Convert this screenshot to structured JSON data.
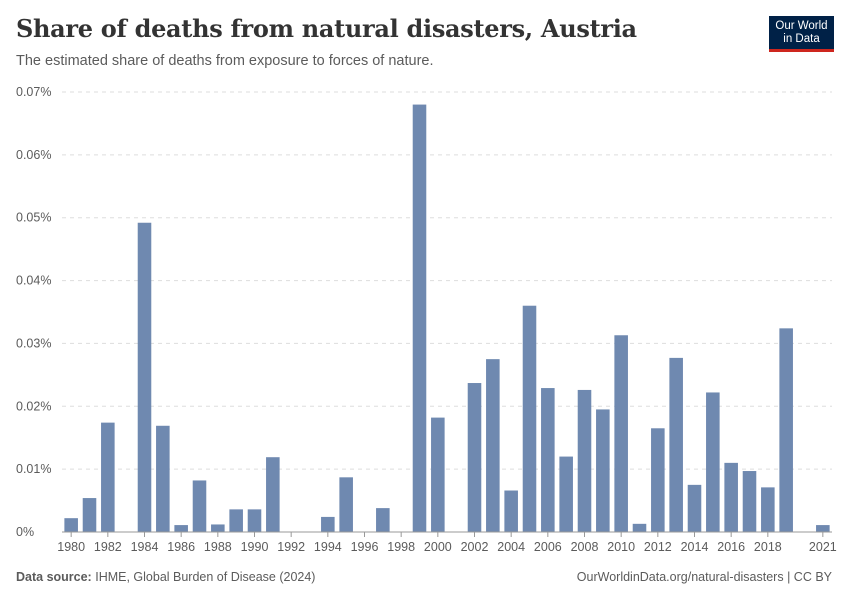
{
  "header": {
    "title": "Share of deaths from natural disasters, Austria",
    "subtitle": "The estimated share of deaths from exposure to forces of nature."
  },
  "logo": {
    "line1": "Our World",
    "line2": "in Data"
  },
  "footer": {
    "source_label": "Data source:",
    "source_text": "IHME, Global Burden of Disease (2024)",
    "url": "OurWorldinData.org/natural-disasters | CC BY"
  },
  "colors": {
    "bar": "#6f89b0",
    "grid": "#dddddd",
    "axis": "#999999"
  },
  "chart_data": {
    "type": "bar",
    "title": "Share of deaths from natural disasters, Austria",
    "xlabel": "",
    "ylabel": "",
    "ylim": [
      0,
      0.07
    ],
    "y_ticks": [
      0,
      0.01,
      0.02,
      0.03,
      0.04,
      0.05,
      0.06,
      0.07
    ],
    "y_tick_labels": [
      "0%",
      "0.01%",
      "0.02%",
      "0.03%",
      "0.04%",
      "0.05%",
      "0.06%",
      "0.07%"
    ],
    "x_tick_labels": [
      "1980",
      "1982",
      "1984",
      "1986",
      "1988",
      "1990",
      "1992",
      "1994",
      "1996",
      "1998",
      "2000",
      "2002",
      "2004",
      "2006",
      "2008",
      "2010",
      "2012",
      "2014",
      "2016",
      "2018",
      "2021"
    ],
    "categories": [
      1980,
      1981,
      1982,
      1983,
      1984,
      1985,
      1986,
      1987,
      1988,
      1989,
      1990,
      1991,
      1992,
      1993,
      1994,
      1995,
      1996,
      1997,
      1998,
      1999,
      2000,
      2001,
      2002,
      2003,
      2004,
      2005,
      2006,
      2007,
      2008,
      2009,
      2010,
      2011,
      2012,
      2013,
      2014,
      2015,
      2016,
      2017,
      2018,
      2019,
      2020,
      2021
    ],
    "values": [
      0.0022,
      0.0054,
      0.0174,
      0,
      0.0492,
      0.0169,
      0.0011,
      0.0082,
      0.0012,
      0.0036,
      0.0036,
      0.0119,
      0,
      0,
      0.0024,
      0.0087,
      0,
      0.0038,
      0,
      0.068,
      0.0182,
      0,
      0.0237,
      0.0275,
      0.0066,
      0.036,
      0.0229,
      0.012,
      0.0226,
      0.0195,
      0.0313,
      0.0013,
      0.0165,
      0.0277,
      0.0075,
      0.0222,
      0.011,
      0.0097,
      0.0071,
      0.0324,
      0,
      0.0011
    ],
    "unit": "%"
  }
}
